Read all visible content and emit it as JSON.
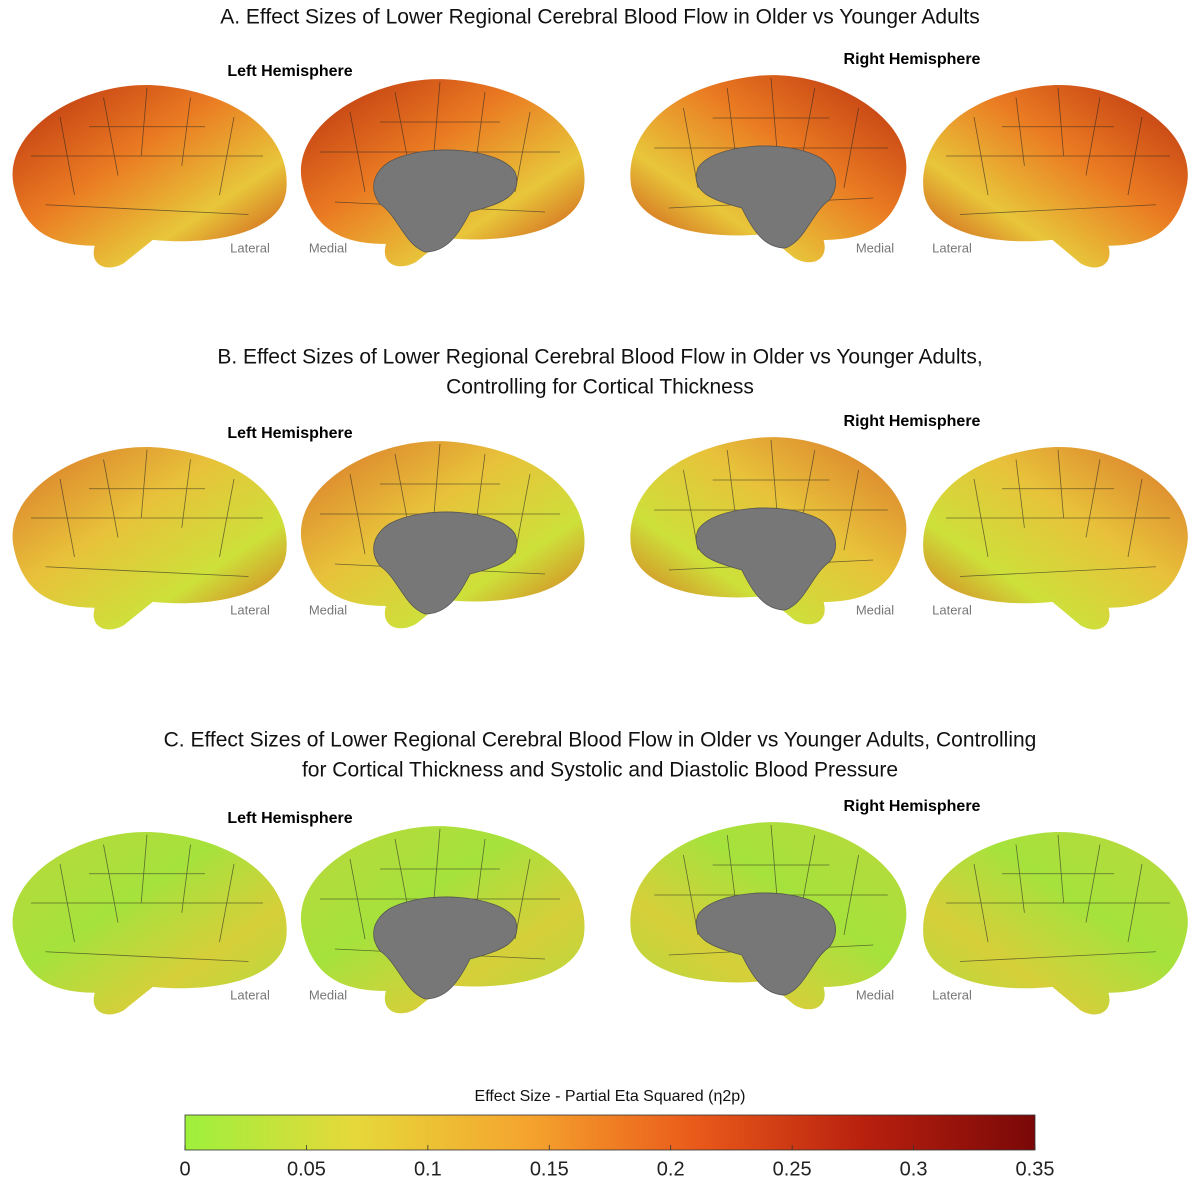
{
  "panels": [
    {
      "title": [
        "A. Effect Sizes of Lower Regional Cerebral Blood Flow in Older vs Younger Adults"
      ],
      "left_label": "Left Hemisphere",
      "right_label": "Right Hemisphere",
      "views": [
        "Lateral",
        "Medial",
        "Medial",
        "Lateral"
      ]
    },
    {
      "title": [
        "B. Effect Sizes of Lower Regional Cerebral Blood Flow in Older vs Younger Adults,",
        "Controlling for Cortical Thickness"
      ],
      "left_label": "Left Hemisphere",
      "right_label": "Right Hemisphere",
      "views": [
        "Lateral",
        "Medial",
        "Medial",
        "Lateral"
      ]
    },
    {
      "title": [
        "C. Effect Sizes of Lower Regional Cerebral Blood Flow in Older vs Younger Adults, Controlling",
        "for Cortical Thickness and Systolic and Diastolic Blood Pressure"
      ],
      "left_label": "Left Hemisphere",
      "right_label": "Right Hemisphere",
      "views": [
        "Lateral",
        "Medial",
        "Medial",
        "Lateral"
      ]
    }
  ],
  "colorbar": {
    "label": "Effect Size - Partial Eta Squared (η2p)",
    "lim": [
      0,
      0.35
    ],
    "ticks": [
      0,
      0.05,
      0.1,
      0.15,
      0.2,
      0.25,
      0.3,
      0.35
    ],
    "colors": [
      "#9ef03c",
      "#e6d83a",
      "#f5a52e",
      "#ea5a1a",
      "#b8200e",
      "#7a0808"
    ]
  }
}
